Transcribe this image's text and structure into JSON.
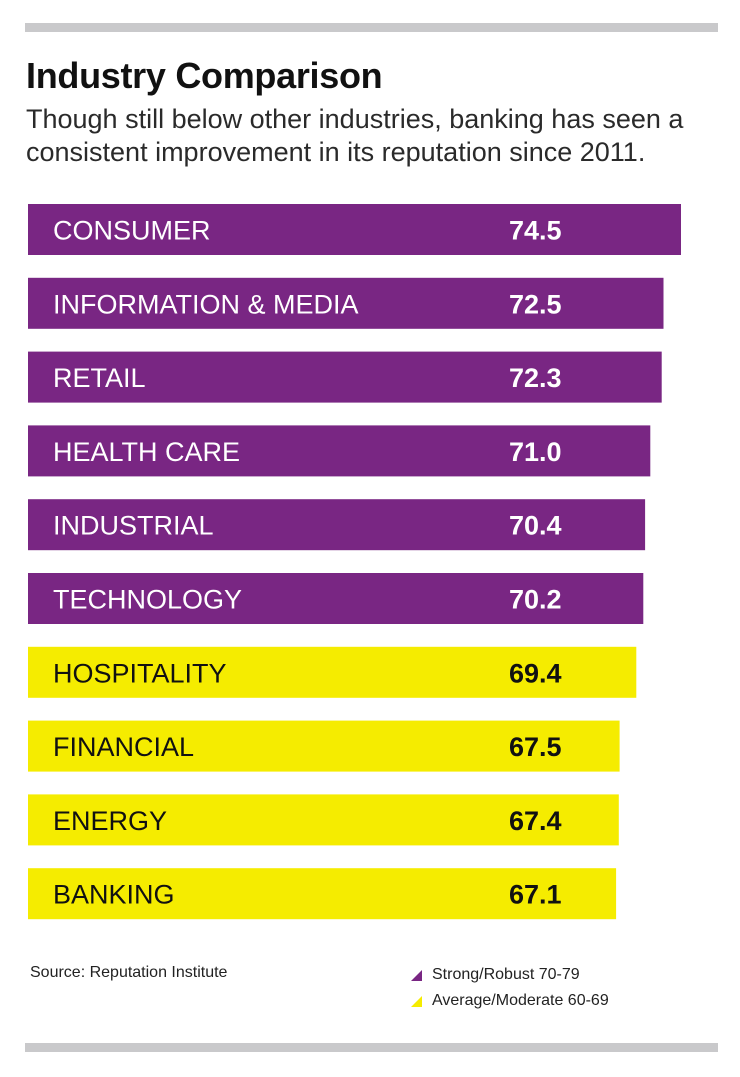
{
  "header": {
    "title": "Industry Comparison",
    "subtitle": "Though still below other industries, banking has seen a consistent improvement in its reputation since 2011."
  },
  "chart_data": {
    "type": "bar",
    "orientation": "horizontal",
    "title": "Industry Comparison",
    "categories": [
      "CONSUMER",
      "INFORMATION & MEDIA",
      "RETAIL",
      "HEALTH CARE",
      "INDUSTRIAL",
      "TECHNOLOGY",
      "HOSPITALITY",
      "FINANCIAL",
      "ENERGY",
      "BANKING"
    ],
    "values": [
      74.5,
      72.5,
      72.3,
      71.0,
      70.4,
      70.2,
      69.4,
      67.5,
      67.4,
      67.1
    ],
    "value_labels": [
      "74.5",
      "72.5",
      "72.3",
      "71.0",
      "70.4",
      "70.2",
      "69.4",
      "67.5",
      "67.4",
      "67.1"
    ],
    "bands": [
      "strong",
      "strong",
      "strong",
      "strong",
      "strong",
      "strong",
      "average",
      "average",
      "average",
      "average"
    ],
    "legend": [
      {
        "key": "strong",
        "label": "Strong/Robust 70-79",
        "color": "#792683",
        "text_color": "#ffffff"
      },
      {
        "key": "average",
        "label": "Average/Moderate 60-69",
        "color": "#f5ec00",
        "text_color": "#111111"
      }
    ],
    "xlim": [
      0,
      74.5
    ],
    "xlabel": "",
    "ylabel": ""
  },
  "footer": {
    "source": "Source: Reputation Institute"
  }
}
